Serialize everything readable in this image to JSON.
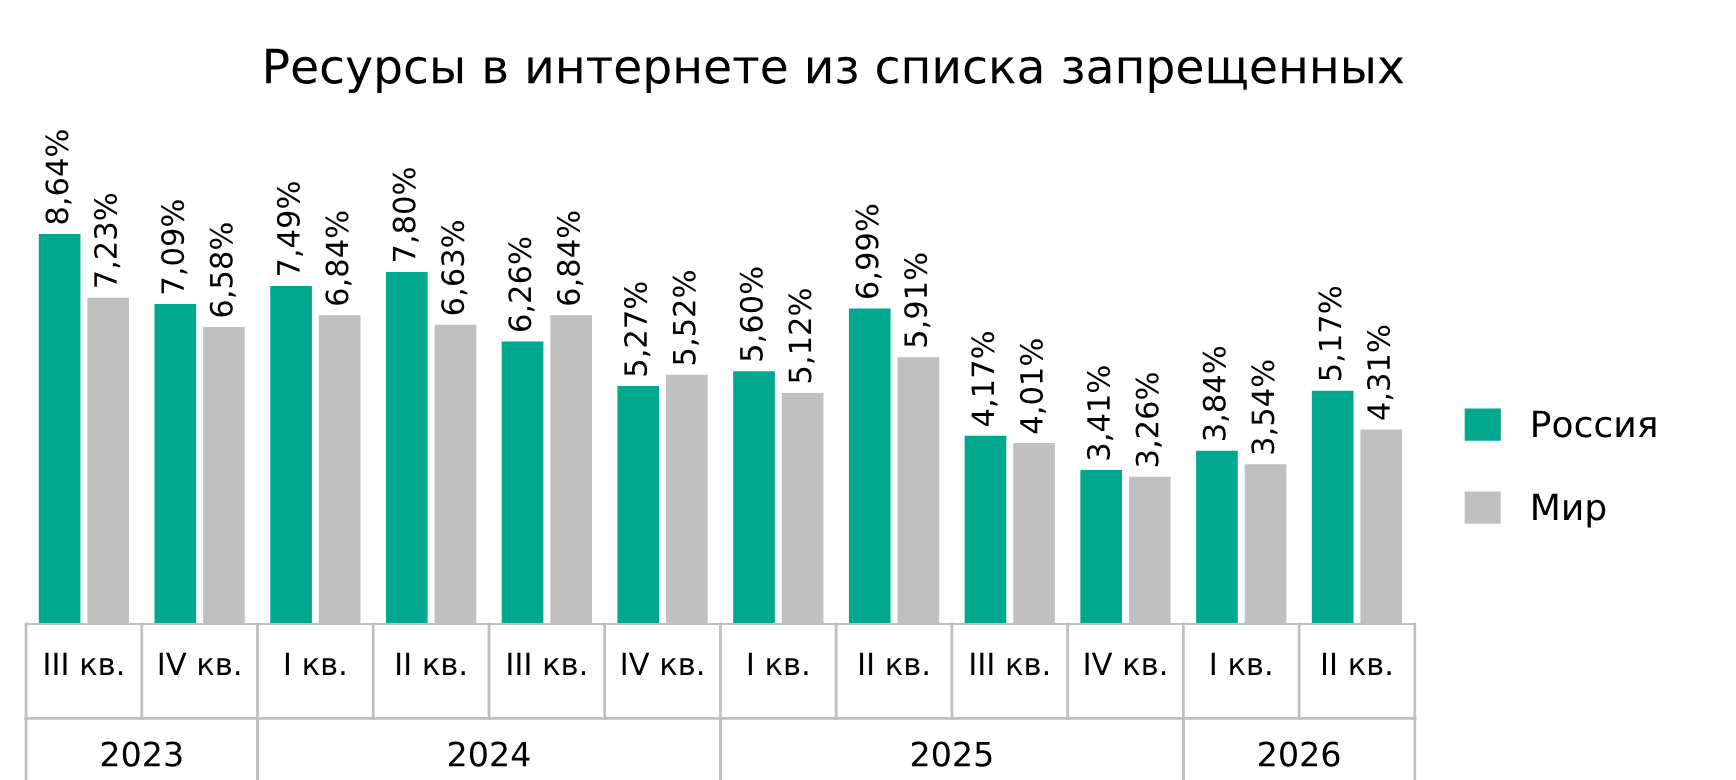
{
  "chart_data": {
    "type": "bar",
    "title": "Ресурсы в интернете из списка запрещенных",
    "categories": [
      "III кв.",
      "IV кв.",
      "I кв.",
      "II кв.",
      "III кв.",
      "IV кв.",
      "I кв.",
      "II кв.",
      "III кв.",
      "IV кв.",
      "I кв.",
      "II кв."
    ],
    "series": [
      {
        "name": "Россия",
        "color": "#00a88e",
        "values": [
          8.64,
          7.09,
          7.49,
          7.8,
          6.26,
          5.27,
          5.6,
          6.99,
          4.17,
          3.41,
          3.84,
          5.17
        ],
        "value_labels": [
          "8,64%",
          "7,09%",
          "7,49%",
          "7,80%",
          "6,26%",
          "5,27%",
          "5,60%",
          "6,99%",
          "4,17%",
          "3,41%",
          "3,84%",
          "5,17%"
        ]
      },
      {
        "name": "Мир",
        "color": "#c0c0c0",
        "values": [
          7.23,
          6.58,
          6.84,
          6.63,
          6.84,
          5.52,
          5.12,
          5.91,
          4.01,
          3.26,
          3.54,
          4.31
        ],
        "value_labels": [
          "7,23%",
          "6,58%",
          "6,84%",
          "6,63%",
          "6,84%",
          "5,52%",
          "5,12%",
          "5,91%",
          "4,01%",
          "3,26%",
          "3,54%",
          "4,31%"
        ]
      }
    ],
    "annotations": [
      "2023",
      "2024",
      "2025",
      "2026"
    ],
    "legend": "right",
    "grid": false
  }
}
